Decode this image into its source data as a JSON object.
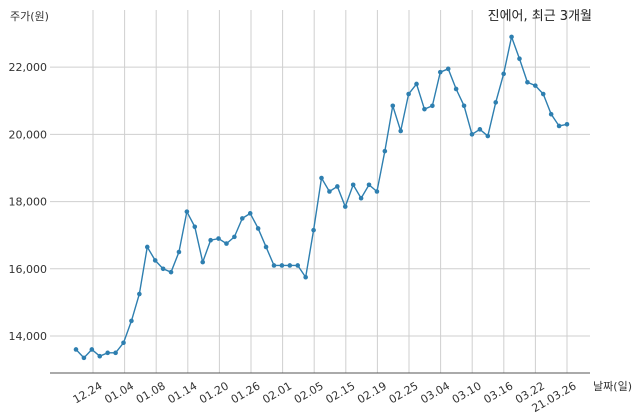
{
  "chart_data": {
    "type": "line",
    "title": "진에어, 최근 3개월",
    "xlabel": "날짜(일)",
    "ylabel": "주가(원)",
    "x_tick_labels": [
      "12.24",
      "01.04",
      "01.08",
      "01.14",
      "01.20",
      "01.26",
      "02.01",
      "02.05",
      "02.15",
      "02.19",
      "02.25",
      "03.04",
      "03.10",
      "03.16",
      "03.22",
      "21.03.26"
    ],
    "y_ticks": [
      14000,
      16000,
      18000,
      20000,
      22000
    ],
    "y_tick_labels": [
      "14,000",
      "16,000",
      "18,000",
      "20,000",
      "22,000"
    ],
    "ylim": [
      12900,
      23700
    ],
    "grid": true,
    "color": "#2e7fb0",
    "values": [
      13600,
      13350,
      13600,
      13400,
      13500,
      13500,
      13800,
      14450,
      15250,
      16650,
      16250,
      16000,
      15900,
      16500,
      17700,
      17250,
      16200,
      16850,
      16900,
      16750,
      16950,
      17500,
      17650,
      17200,
      16650,
      16100,
      16100,
      16100,
      16100,
      15750,
      17150,
      18700,
      18300,
      18450,
      17850,
      18500,
      18100,
      18500,
      18300,
      19500,
      20850,
      20100,
      21200,
      21500,
      20750,
      20850,
      21850,
      21950,
      21350,
      20850,
      20000,
      20150,
      19950,
      20950,
      21800,
      22900,
      22250,
      21550,
      21450,
      21200,
      20600,
      20250,
      20300
    ]
  }
}
